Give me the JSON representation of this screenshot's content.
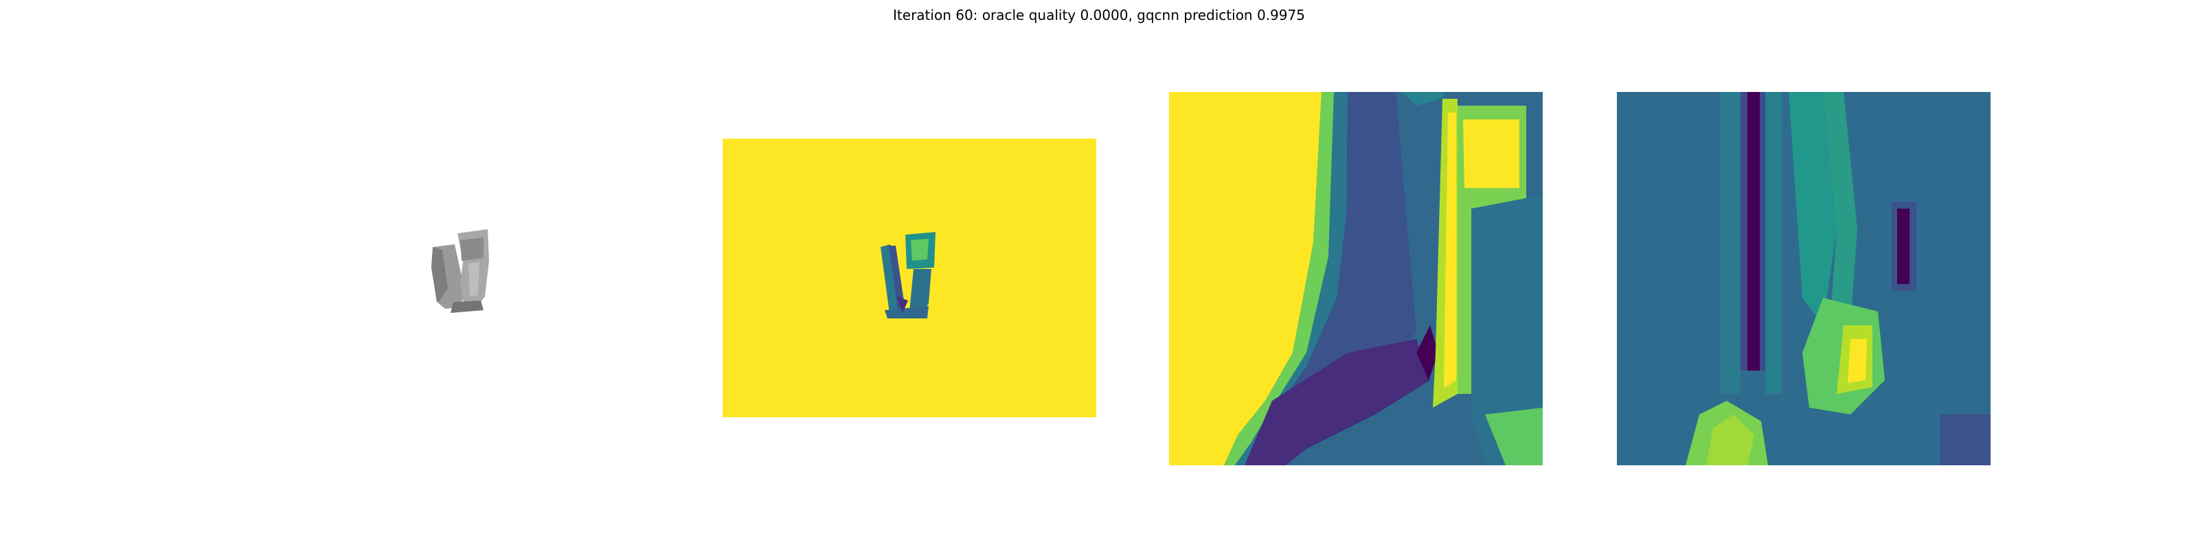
{
  "figure": {
    "title": "Iteration 60: oracle quality 0.0000, gqcnn prediction 0.9975"
  },
  "colors": {
    "viridis_yellow": "#fde725",
    "viridis_teal": "#2a788e",
    "viridis_dark": "#440154",
    "viridis_purple": "#472d7b",
    "viridis_green": "#7ad151",
    "mesh_gray": "#8c8c8c"
  },
  "panels": [
    {
      "id": "rendered-mesh",
      "kind": "gray 3D render of object"
    },
    {
      "id": "depth-image",
      "kind": "viridis depth image"
    },
    {
      "id": "depth-crop",
      "kind": "viridis zoomed crop"
    },
    {
      "id": "gradient-map",
      "kind": "viridis feature map"
    }
  ]
}
